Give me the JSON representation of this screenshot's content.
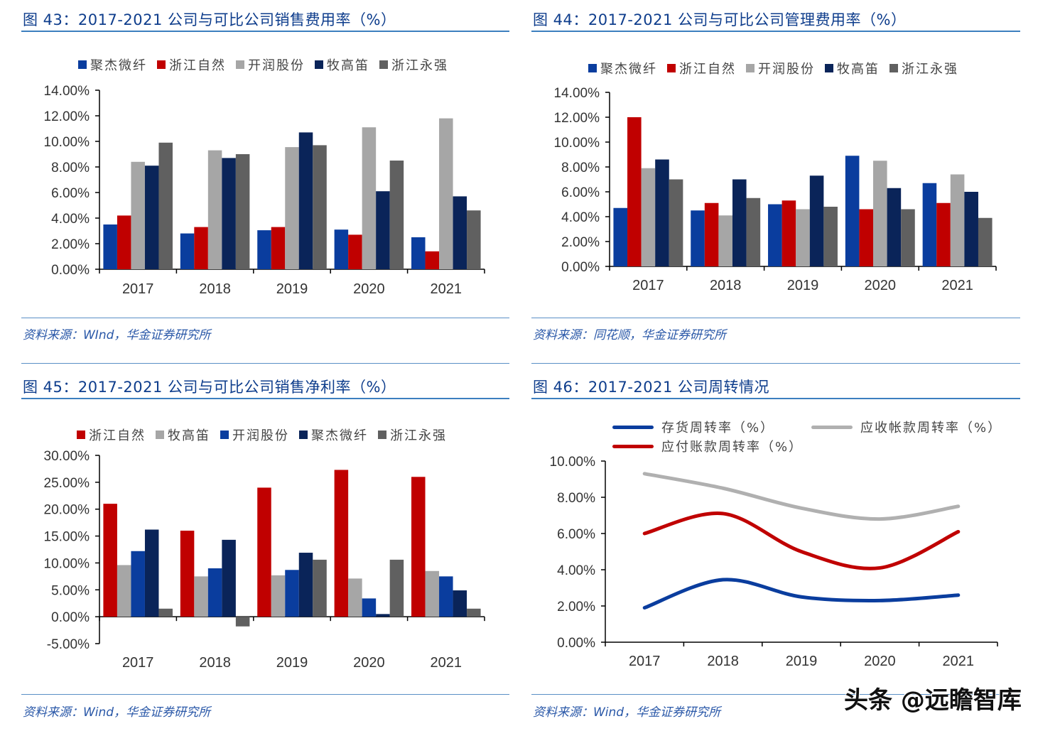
{
  "panels": [
    {
      "title": "图 43：2017-2021 公司与可比公司销售费用率（%）",
      "source": "资料来源：WInd，华金证券研究所"
    },
    {
      "title": "图 44：2017-2021 公司与可比公司管理费用率（%）",
      "source": "资料来源：同花顺，华金证券研究所"
    },
    {
      "title": "图 45：2017-2021 公司与可比公司销售净利率（%）",
      "source": "资料来源：Wind，华金证券研究所"
    },
    {
      "title": "图 46：2017-2021 公司周转情况",
      "source": "资料来源：Wind，华金证券研究所"
    }
  ],
  "watermark": "头条 @远瞻智库",
  "chart_data": [
    {
      "type": "bar",
      "categories": [
        "2017",
        "2018",
        "2019",
        "2020",
        "2021"
      ],
      "ylim": [
        0,
        14
      ],
      "yticks": [
        "0.00%",
        "2.00%",
        "4.00%",
        "6.00%",
        "8.00%",
        "10.00%",
        "12.00%",
        "14.00%"
      ],
      "legend": "top",
      "series": [
        {
          "name": "聚杰微纤",
          "color": "#0a3d9e",
          "values": [
            3.5,
            2.8,
            3.05,
            3.1,
            2.5
          ]
        },
        {
          "name": "浙江自然",
          "color": "#c00000",
          "values": [
            4.2,
            3.3,
            3.3,
            2.7,
            1.4
          ]
        },
        {
          "name": "开润股份",
          "color": "#a6a6a6",
          "values": [
            8.4,
            9.3,
            9.55,
            11.1,
            11.8
          ]
        },
        {
          "name": "牧高笛",
          "color": "#0a2459",
          "values": [
            8.1,
            8.7,
            10.7,
            6.1,
            5.7
          ]
        },
        {
          "name": "浙江永强",
          "color": "#606060",
          "values": [
            9.9,
            9.0,
            9.7,
            8.5,
            4.6
          ]
        }
      ]
    },
    {
      "type": "bar",
      "categories": [
        "2017",
        "2018",
        "2019",
        "2020",
        "2021"
      ],
      "ylim": [
        0,
        14
      ],
      "yticks": [
        "0.00%",
        "2.00%",
        "4.00%",
        "6.00%",
        "8.00%",
        "10.00%",
        "12.00%",
        "14.00%"
      ],
      "legend": "top",
      "series": [
        {
          "name": "聚杰微纤",
          "color": "#0a3d9e",
          "values": [
            4.7,
            4.5,
            5.0,
            8.9,
            6.7
          ]
        },
        {
          "name": "浙江自然",
          "color": "#c00000",
          "values": [
            12.0,
            5.1,
            5.3,
            4.6,
            5.1
          ]
        },
        {
          "name": "开润股份",
          "color": "#a6a6a6",
          "values": [
            7.9,
            4.1,
            4.6,
            8.5,
            7.4
          ]
        },
        {
          "name": "牧高笛",
          "color": "#0a2459",
          "values": [
            8.6,
            7.0,
            7.3,
            6.3,
            6.0
          ]
        },
        {
          "name": "浙江永强",
          "color": "#606060",
          "values": [
            7.0,
            5.5,
            4.8,
            4.6,
            3.9
          ]
        }
      ]
    },
    {
      "type": "bar",
      "categories": [
        "2017",
        "2018",
        "2019",
        "2020",
        "2021"
      ],
      "ylim": [
        -5,
        30
      ],
      "yticks": [
        "-5.00%",
        "0.00%",
        "5.00%",
        "10.00%",
        "15.00%",
        "20.00%",
        "25.00%",
        "30.00%"
      ],
      "legend": "top",
      "series": [
        {
          "name": "浙江自然",
          "color": "#c00000",
          "values": [
            21.0,
            16.0,
            24.0,
            27.3,
            26.0
          ]
        },
        {
          "name": "牧高笛",
          "color": "#a6a6a6",
          "values": [
            9.6,
            7.5,
            7.7,
            7.1,
            8.5
          ]
        },
        {
          "name": "开润股份",
          "color": "#0a3d9e",
          "values": [
            12.2,
            9.0,
            8.7,
            3.4,
            7.5
          ]
        },
        {
          "name": "聚杰微纤",
          "color": "#0a2459",
          "values": [
            16.2,
            14.3,
            11.9,
            0.5,
            4.9
          ]
        },
        {
          "name": "浙江永强",
          "color": "#606060",
          "values": [
            1.5,
            -1.8,
            10.6,
            10.6,
            1.5
          ]
        }
      ]
    },
    {
      "type": "line",
      "categories": [
        "2017",
        "2018",
        "2019",
        "2020",
        "2021"
      ],
      "ylim": [
        0,
        10
      ],
      "yticks": [
        "0.00%",
        "2.00%",
        "4.00%",
        "6.00%",
        "8.00%",
        "10.00%"
      ],
      "legend": "top",
      "series": [
        {
          "name": "存货周转率（%）",
          "color": "#0a3d9e",
          "values": [
            1.9,
            3.45,
            2.5,
            2.3,
            2.6
          ]
        },
        {
          "name": "应收帐款周转率（%）",
          "color": "#b0b0b0",
          "values": [
            9.3,
            8.5,
            7.4,
            6.8,
            7.5
          ]
        },
        {
          "name": "应付账款周转率（%）",
          "color": "#c00000",
          "values": [
            6.0,
            7.1,
            5.0,
            4.1,
            6.1
          ]
        }
      ]
    }
  ]
}
